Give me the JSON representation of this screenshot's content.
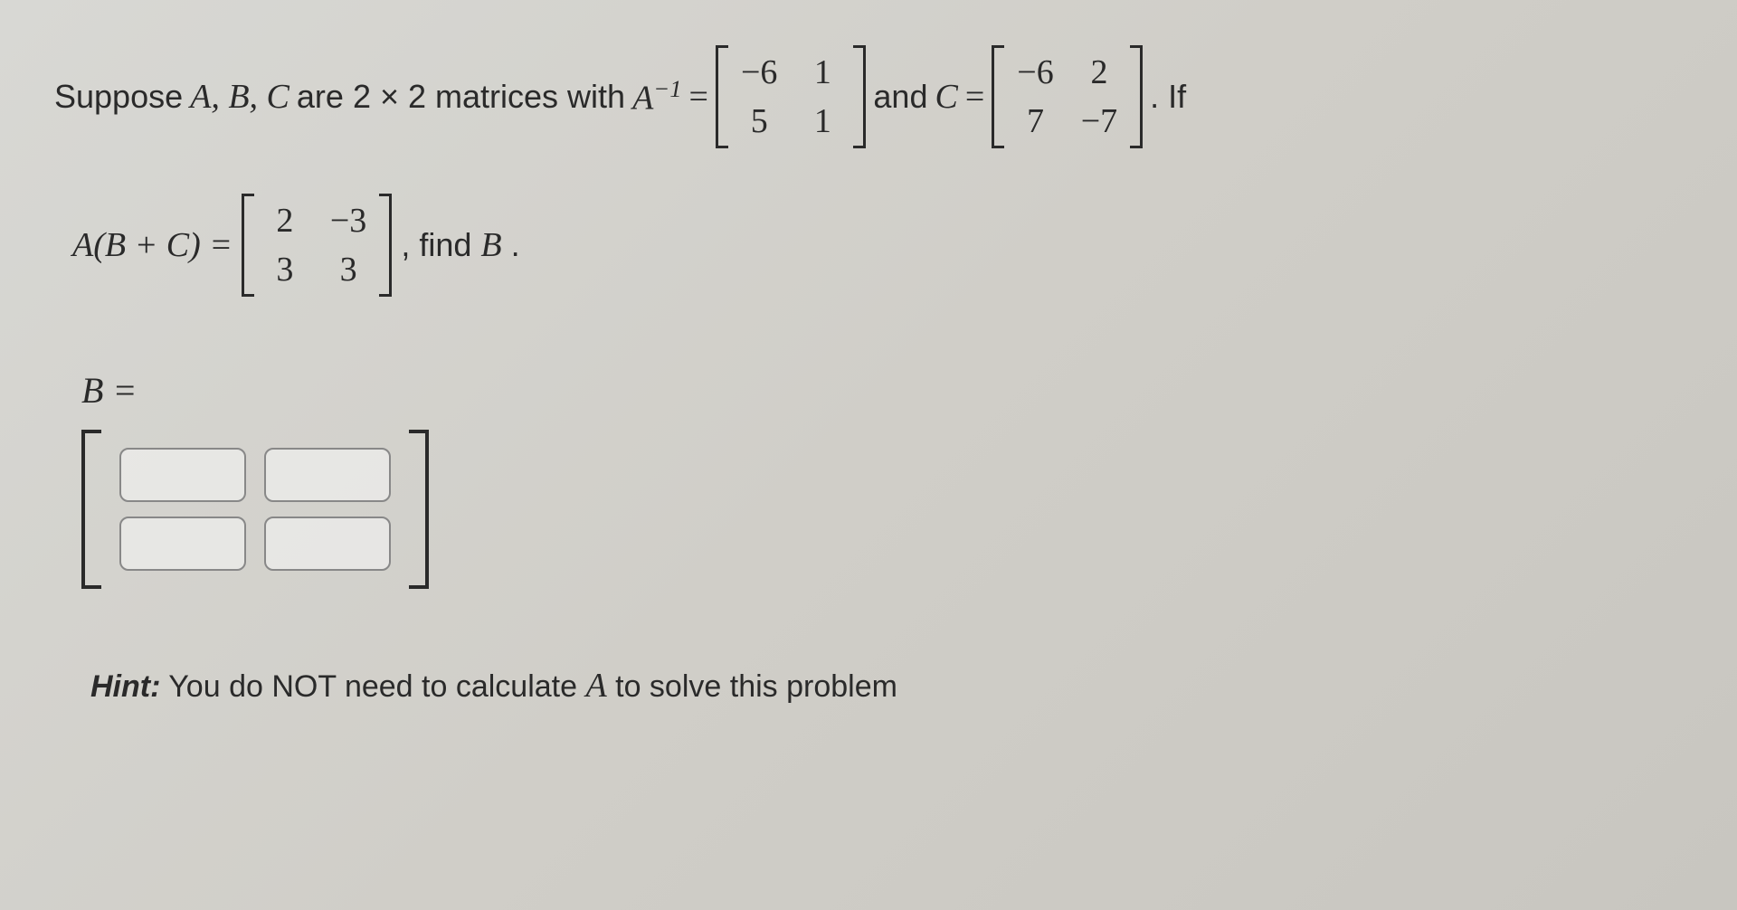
{
  "problem": {
    "intro_prefix": "Suppose ",
    "vars": "A, B, C",
    "intro_mid": " are 2 × 2 matrices with ",
    "a_inv_label_html": "A",
    "a_inv_exp": "−1",
    "equals": " = ",
    "a_inv_matrix": [
      "−6",
      "1",
      "5",
      "1"
    ],
    "and_text": " and ",
    "c_label": "C",
    "c_matrix": [
      "−6",
      "2",
      "7",
      "−7"
    ],
    "period_if": ". If",
    "abc_left": "A(B + C) = ",
    "abc_matrix": [
      "2",
      "−3",
      "3",
      "3"
    ],
    "find_b": ", find ",
    "find_b_var": "B",
    "find_b_period": "."
  },
  "answer": {
    "label": "B =",
    "inputs": [
      "",
      "",
      "",
      ""
    ]
  },
  "hint": {
    "prefix": "Hint:",
    "text_before": " You do NOT need to calculate ",
    "var": "A",
    "text_after": " to solve this problem"
  },
  "style": {
    "text_color": "#2a2a2a",
    "input_border": "#888",
    "input_bg": "rgba(240,240,238,0.7)",
    "input_radius": 10
  }
}
